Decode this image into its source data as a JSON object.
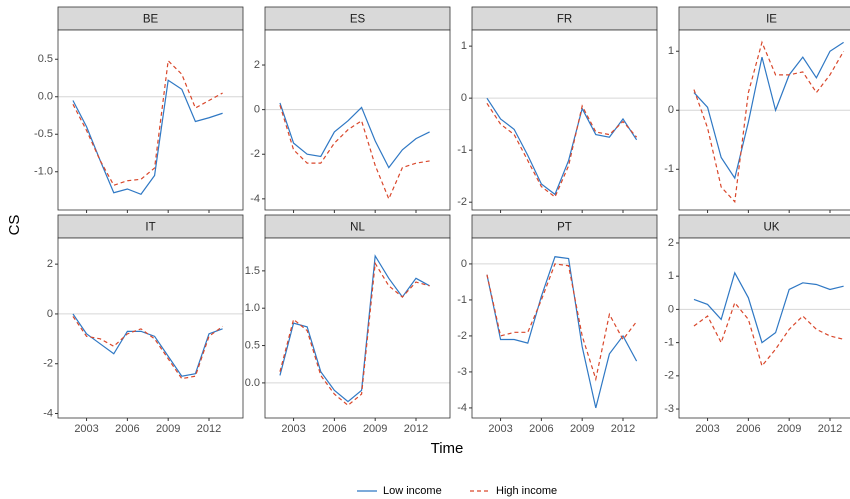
{
  "x_label": "Time",
  "y_label": "CS",
  "chart_data": [
    {
      "type": "line",
      "title": "BE",
      "x": [
        2002,
        2003,
        2004,
        2005,
        2006,
        2007,
        2008,
        2009,
        2010,
        2011,
        2012,
        2013
      ],
      "xlim": [
        2000.9,
        2014.5
      ],
      "xticks": [
        2003,
        2006,
        2009,
        2012
      ],
      "ylim": [
        -1.51,
        0.89
      ],
      "yticks": [
        {
          "value": -1,
          "label": "-1.0"
        },
        -0.5,
        {
          "value": 0,
          "label": "0.0"
        },
        0.5
      ],
      "hline": 0,
      "series": [
        {
          "name": "Low income",
          "color": "#2f78c4",
          "dash": "solid",
          "values": [
            -0.05,
            -0.4,
            -0.85,
            -1.28,
            -1.23,
            -1.3,
            -1.05,
            0.22,
            0.1,
            -0.33,
            -0.28,
            -0.22
          ]
        },
        {
          "name": "High income",
          "color": "#d9472b",
          "dash": "dashed",
          "values": [
            -0.1,
            -0.45,
            -0.85,
            -1.18,
            -1.12,
            -1.1,
            -0.95,
            0.48,
            0.3,
            -0.15,
            -0.05,
            0.05
          ]
        }
      ]
    },
    {
      "type": "line",
      "title": "ES",
      "x": [
        2002,
        2003,
        2004,
        2005,
        2006,
        2007,
        2008,
        2009,
        2010,
        2011,
        2012,
        2013
      ],
      "xlim": [
        2000.9,
        2014.5
      ],
      "xticks": [
        2003,
        2006,
        2009,
        2012
      ],
      "ylim": [
        -4.5,
        3.57
      ],
      "yticks": [
        -4,
        -2,
        0,
        2
      ],
      "hline": 0,
      "series": [
        {
          "name": "Low income",
          "color": "#2f78c4",
          "dash": "solid",
          "values": [
            0.3,
            -1.5,
            -2.0,
            -2.1,
            -1.0,
            -0.5,
            0.1,
            -1.4,
            -2.6,
            -1.8,
            -1.3,
            -1.0
          ]
        },
        {
          "name": "High income",
          "color": "#d9472b",
          "dash": "dashed",
          "values": [
            0.2,
            -1.8,
            -2.4,
            -2.4,
            -1.5,
            -0.9,
            -0.5,
            -2.5,
            -4.0,
            -2.6,
            -2.4,
            -2.3
          ]
        }
      ]
    },
    {
      "type": "line",
      "title": "FR",
      "x": [
        2002,
        2003,
        2004,
        2005,
        2006,
        2007,
        2008,
        2009,
        2010,
        2011,
        2012,
        2013
      ],
      "xlim": [
        2000.9,
        2014.5
      ],
      "xticks": [
        2003,
        2006,
        2009,
        2012
      ],
      "ylim": [
        -2.15,
        1.31
      ],
      "yticks": [
        -2,
        -1,
        0,
        1
      ],
      "hline": 0,
      "series": [
        {
          "name": "Low income",
          "color": "#2f78c4",
          "dash": "solid",
          "values": [
            0,
            -0.4,
            -0.6,
            -1.1,
            -1.65,
            -1.85,
            -1.2,
            -0.2,
            -0.7,
            -0.75,
            -0.4,
            -0.8
          ]
        },
        {
          "name": "High income",
          "color": "#d9472b",
          "dash": "dashed",
          "values": [
            -0.1,
            -0.5,
            -0.7,
            -1.2,
            -1.7,
            -1.9,
            -1.3,
            -0.15,
            -0.65,
            -0.7,
            -0.45,
            -0.75
          ]
        }
      ]
    },
    {
      "type": "line",
      "title": "IE",
      "x": [
        2002,
        2003,
        2004,
        2005,
        2006,
        2007,
        2008,
        2009,
        2010,
        2011,
        2012,
        2013
      ],
      "xlim": [
        2000.9,
        2014.5
      ],
      "xticks": [
        2003,
        2006,
        2009,
        2012
      ],
      "ylim": [
        -1.69,
        1.36
      ],
      "yticks": [
        -1,
        0,
        1
      ],
      "hline": 0,
      "series": [
        {
          "name": "Low income",
          "color": "#2f78c4",
          "dash": "solid",
          "values": [
            0.3,
            0.05,
            -0.8,
            -1.15,
            -0.2,
            0.9,
            0.0,
            0.6,
            0.9,
            0.55,
            1.0,
            1.15
          ]
        },
        {
          "name": "High income",
          "color": "#d9472b",
          "dash": "dashed",
          "values": [
            0.35,
            -0.3,
            -1.3,
            -1.55,
            0.3,
            1.15,
            0.6,
            0.6,
            0.65,
            0.3,
            0.6,
            1.0
          ]
        }
      ]
    },
    {
      "type": "line",
      "title": "IT",
      "x": [
        2002,
        2003,
        2004,
        2005,
        2006,
        2007,
        2008,
        2009,
        2010,
        2011,
        2012,
        2013
      ],
      "xlim": [
        2000.9,
        2014.5
      ],
      "xticks": [
        2003,
        2006,
        2009,
        2012
      ],
      "ylim": [
        -4.18,
        3.05
      ],
      "yticks": [
        -4,
        -2,
        0,
        2
      ],
      "hline": 0,
      "series": [
        {
          "name": "Low income",
          "color": "#2f78c4",
          "dash": "solid",
          "values": [
            0,
            -0.8,
            -1.2,
            -1.6,
            -0.7,
            -0.7,
            -0.9,
            -1.7,
            -2.5,
            -2.4,
            -0.8,
            -0.6
          ]
        },
        {
          "name": "High income",
          "color": "#d9472b",
          "dash": "dashed",
          "values": [
            -0.1,
            -0.9,
            -1.0,
            -1.3,
            -0.8,
            -0.6,
            -1.0,
            -1.8,
            -2.6,
            -2.5,
            -0.9,
            -0.5
          ]
        }
      ]
    },
    {
      "type": "line",
      "title": "NL",
      "x": [
        2002,
        2003,
        2004,
        2005,
        2006,
        2007,
        2008,
        2009,
        2010,
        2011,
        2012,
        2013
      ],
      "xlim": [
        2000.9,
        2014.5
      ],
      "xticks": [
        2003,
        2006,
        2009,
        2012
      ],
      "ylim": [
        -0.47,
        1.94
      ],
      "yticks": [
        {
          "value": 0,
          "label": "0.0"
        },
        0.5,
        {
          "value": 1,
          "label": "1.0"
        },
        1.5
      ],
      "hline": 0,
      "series": [
        {
          "name": "Low income",
          "color": "#2f78c4",
          "dash": "solid",
          "values": [
            0.1,
            0.8,
            0.75,
            0.15,
            -0.1,
            -0.25,
            -0.1,
            1.7,
            1.4,
            1.15,
            1.4,
            1.3
          ]
        },
        {
          "name": "High income",
          "color": "#d9472b",
          "dash": "dashed",
          "values": [
            0.15,
            0.85,
            0.7,
            0.1,
            -0.15,
            -0.3,
            -0.15,
            1.6,
            1.3,
            1.15,
            1.35,
            1.3
          ]
        }
      ]
    },
    {
      "type": "line",
      "title": "PT",
      "x": [
        2002,
        2003,
        2004,
        2005,
        2006,
        2007,
        2008,
        2009,
        2010,
        2011,
        2012,
        2013
      ],
      "xlim": [
        2000.9,
        2014.5
      ],
      "xticks": [
        2003,
        2006,
        2009,
        2012
      ],
      "ylim": [
        -4.28,
        0.72
      ],
      "yticks": [
        -4,
        -3,
        -2,
        -1,
        0
      ],
      "hline": 0,
      "series": [
        {
          "name": "Low income",
          "color": "#2f78c4",
          "dash": "solid",
          "values": [
            -0.3,
            -2.1,
            -2.1,
            -2.2,
            -0.9,
            0.2,
            0.15,
            -2.3,
            -4.0,
            -2.5,
            -2.0,
            -2.7
          ]
        },
        {
          "name": "High income",
          "color": "#d9472b",
          "dash": "dashed",
          "values": [
            -0.3,
            -2.0,
            -1.9,
            -1.9,
            -1.0,
            0.0,
            -0.05,
            -2.0,
            -3.2,
            -1.4,
            -2.1,
            -1.6
          ]
        }
      ]
    },
    {
      "type": "line",
      "title": "UK",
      "x": [
        2002,
        2003,
        2004,
        2005,
        2006,
        2007,
        2008,
        2009,
        2010,
        2011,
        2012,
        2013
      ],
      "xlim": [
        2000.9,
        2014.5
      ],
      "xticks": [
        2003,
        2006,
        2009,
        2012
      ],
      "ylim": [
        -3.27,
        2.15
      ],
      "yticks": [
        -3,
        -2,
        -1,
        0,
        1,
        2
      ],
      "hline": 0,
      "series": [
        {
          "name": "Low income",
          "color": "#2f78c4",
          "dash": "solid",
          "values": [
            0.3,
            0.15,
            -0.3,
            1.1,
            0.35,
            -1.0,
            -0.7,
            0.6,
            0.8,
            0.75,
            0.6,
            0.7
          ]
        },
        {
          "name": "High income",
          "color": "#d9472b",
          "dash": "dashed",
          "values": [
            -0.5,
            -0.2,
            -1.0,
            0.2,
            -0.3,
            -1.7,
            -1.2,
            -0.6,
            -0.2,
            -0.6,
            -0.8,
            -0.9
          ]
        }
      ]
    }
  ]
}
